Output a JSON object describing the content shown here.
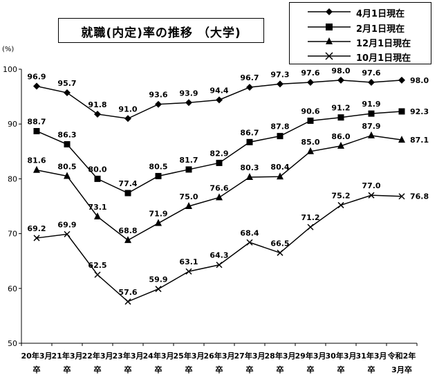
{
  "title": "就職(内定)率の推移 （大学)",
  "unit_label": "(%)",
  "chart_data": {
    "type": "line",
    "ylim": [
      50,
      100
    ],
    "yticks": [
      50,
      60,
      70,
      80,
      90,
      100
    ],
    "categories": [
      [
        "20年3月",
        "卒"
      ],
      [
        "21年3月",
        "卒"
      ],
      [
        "22年3月",
        "卒"
      ],
      [
        "23年3月",
        "卒"
      ],
      [
        "24年3月",
        "卒"
      ],
      [
        "25年3月",
        "卒"
      ],
      [
        "26年3月",
        "卒"
      ],
      [
        "27年3月",
        "卒"
      ],
      [
        "28年3月",
        "卒"
      ],
      [
        "29年3月",
        "卒"
      ],
      [
        "30年3月",
        "卒"
      ],
      [
        "31年3月",
        "卒"
      ],
      [
        "令和2年",
        "3月卒"
      ]
    ],
    "legend_position": "top-right",
    "series": [
      {
        "name": "4月1日現在",
        "marker": "diamond",
        "values": [
          96.9,
          95.7,
          91.8,
          91.0,
          93.6,
          93.9,
          94.4,
          96.7,
          97.3,
          97.6,
          98.0,
          97.6,
          98.0
        ],
        "labels": [
          "96.9",
          "95.7",
          "91.8",
          "91.0",
          "93.6",
          "93.9",
          "94.4",
          "96.7",
          "97.3",
          "97.6",
          "98.0",
          "97.6",
          "98.0"
        ]
      },
      {
        "name": "2月1日現在",
        "marker": "square",
        "values": [
          88.7,
          86.3,
          80.0,
          77.4,
          80.5,
          81.7,
          82.9,
          86.7,
          87.8,
          90.6,
          91.2,
          91.9,
          92.3
        ],
        "labels": [
          "88.7",
          "86.3",
          "80.0",
          "77.4",
          "80.5",
          "81.7",
          "82.9",
          "86.7",
          "87.8",
          "90.6",
          "91.2",
          "91.9",
          "92.3"
        ]
      },
      {
        "name": "12月1日現在",
        "marker": "triangle",
        "values": [
          81.6,
          80.5,
          73.1,
          68.8,
          71.9,
          75.0,
          76.6,
          80.3,
          80.4,
          85.0,
          86.0,
          87.9,
          87.1
        ],
        "labels": [
          "81.6",
          "80.5",
          "73.1",
          "68.8",
          "71.9",
          "75.0",
          "76.6",
          "80.3",
          "80.4",
          "85.0",
          "86.0",
          "87.9",
          "87.1"
        ]
      },
      {
        "name": "10月1日現在",
        "marker": "cross",
        "values": [
          69.2,
          69.9,
          62.5,
          57.6,
          59.9,
          63.1,
          64.3,
          68.4,
          66.5,
          71.2,
          75.2,
          77.0,
          76.8
        ],
        "labels": [
          "69.2",
          "69.9",
          "62.5",
          "57.6",
          "59.9",
          "63.1",
          "64.3",
          "68.4",
          "66.5",
          "71.2",
          "75.2",
          "77.0",
          "76.8"
        ]
      }
    ]
  }
}
